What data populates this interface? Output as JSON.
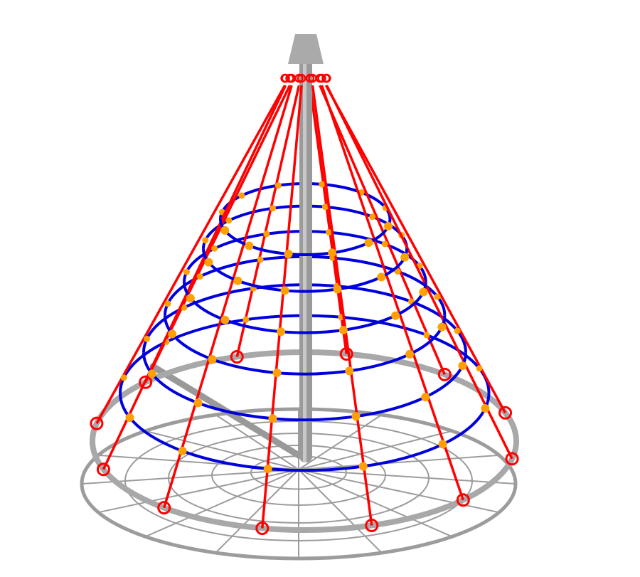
{
  "scene": {
    "subject": "rope-cone",
    "colors": {
      "pole": "#9a9a9a",
      "frame": "#a8a8a8",
      "ground_net": "#9c9c9c",
      "ropes": "#ff0000",
      "rings": "#0000dd",
      "knots": "#ffa000",
      "background": "#ffffff"
    },
    "rope_count": 12,
    "ring_count": 6
  }
}
